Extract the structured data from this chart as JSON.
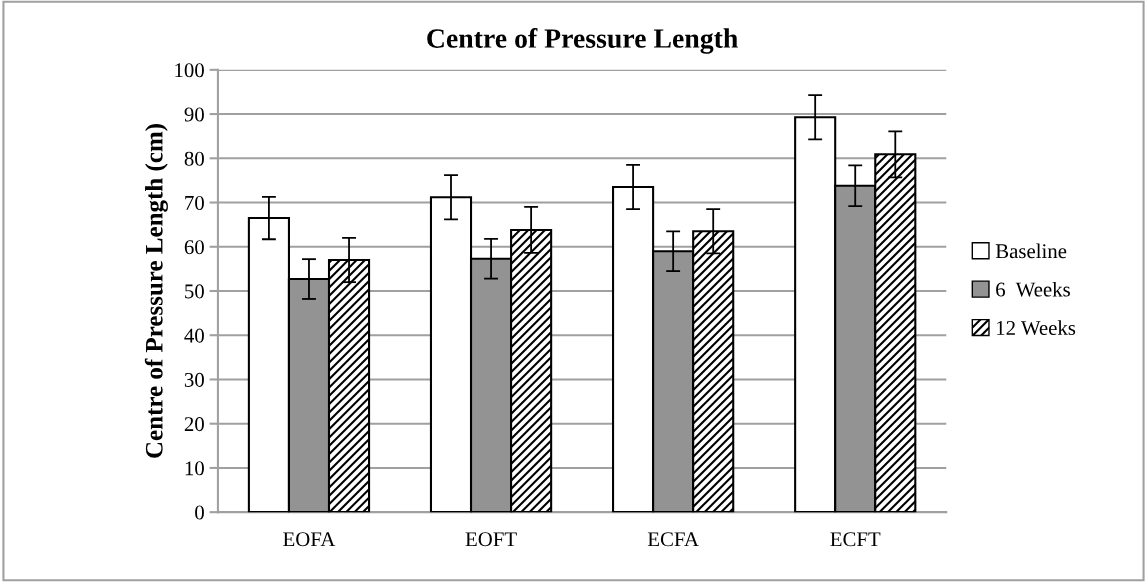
{
  "chart_data": {
    "type": "bar",
    "title": "Centre of Pressure Length",
    "ylabel": "Centre of Pressure Length (cm)",
    "categories": [
      "EOFA",
      "EOFT",
      "ECFA",
      "ECFT"
    ],
    "series": [
      {
        "name": "Baseline",
        "color": "#ffffff",
        "values": [
          66.5,
          71.2,
          73.5,
          89.3
        ],
        "errors": [
          4.8,
          5,
          5,
          5
        ]
      },
      {
        "name": "6  Weeks",
        "color": "#939393",
        "values": [
          52.7,
          57.3,
          59,
          73.8
        ],
        "errors": [
          4.5,
          4.5,
          4.5,
          4.6
        ]
      },
      {
        "name": "12 Weeks",
        "color": "#000000",
        "values": [
          57,
          63.8,
          63.5,
          80.9
        ],
        "errors": [
          5,
          5.2,
          5,
          5.2
        ]
      }
    ],
    "ylim": [
      0,
      100
    ],
    "yticks": [
      0,
      10,
      20,
      30,
      40,
      50,
      60,
      70,
      80,
      90,
      100
    ],
    "grid": "y",
    "legend": "right"
  }
}
